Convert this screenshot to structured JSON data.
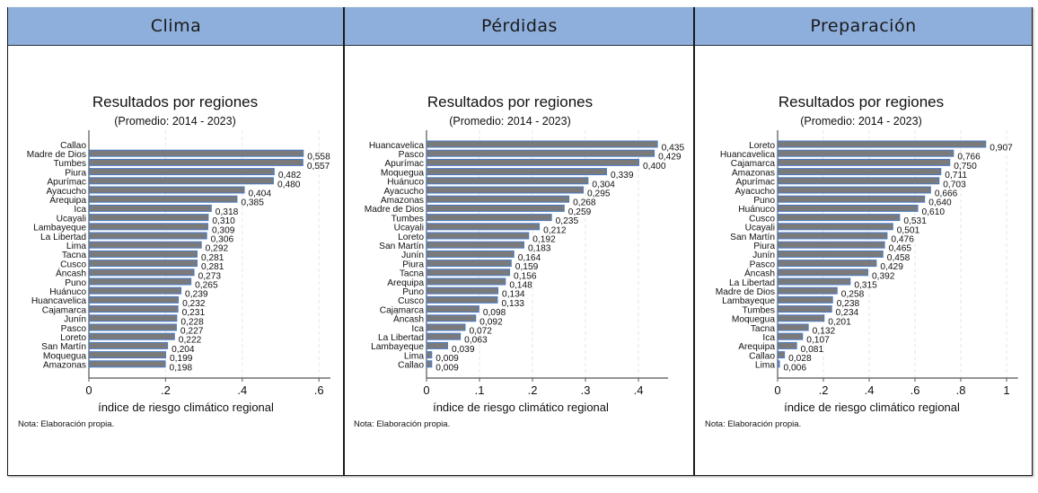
{
  "colors": {
    "header_bg": "#8eafdc",
    "bar_fill": "#7a7a7a",
    "bar_outline": "#4a7cc8",
    "grid": "#e6e6e6"
  },
  "chart_data": [
    {
      "type": "bar",
      "orientation": "horizontal",
      "panel_title": "Clima",
      "title": "Resultados por regiones",
      "subtitle": "(Promedio: 2014 - 2023)",
      "xlabel": "índice de riesgo climático regional",
      "note": "Nota: Elaboración propia.",
      "xlim": [
        0,
        0.63
      ],
      "ticks": [
        0,
        0.2,
        0.4,
        0.6
      ],
      "tick_labels": [
        "0",
        ".2",
        ".4",
        ".6"
      ],
      "grid": true,
      "categories": [
        "Callao",
        "Madre de Dios",
        "Tumbes",
        "Piura",
        "Apurímac",
        "Ayacucho",
        "Arequipa",
        "Ica",
        "Ucayali",
        "Lambayeque",
        "La Libertad",
        "Lima",
        "Tacna",
        "Cusco",
        "Áncash",
        "Puno",
        "Huánuco",
        "Huancavelica",
        "Cajamarca",
        "Junín",
        "Pasco",
        "Loreto",
        "San Martín",
        "Moquegua",
        "Amazonas"
      ],
      "values": [
        null,
        0.558,
        0.557,
        0.482,
        0.48,
        0.404,
        0.385,
        0.318,
        0.31,
        0.309,
        0.306,
        0.292,
        0.281,
        0.281,
        0.273,
        0.265,
        0.239,
        0.232,
        0.231,
        0.228,
        0.227,
        0.222,
        0.204,
        0.199,
        0.198
      ],
      "value_labels": [
        "",
        "0,558",
        "0,557",
        "0,482",
        "0,480",
        "0,404",
        "0,385",
        "0,318",
        "0,310",
        "0,309",
        "0,306",
        "0,292",
        "0,281",
        "0,281",
        "0,273",
        "0,265",
        "0,239",
        "0,232",
        "0,231",
        "0,228",
        "0,227",
        "0,222",
        "0,204",
        "0,199",
        "0,198"
      ]
    },
    {
      "type": "bar",
      "orientation": "horizontal",
      "panel_title": "Pérdidas",
      "title": "Resultados por regiones",
      "subtitle": "(Promedio: 2014 - 2023)",
      "xlabel": "índice de riesgo climático regional",
      "note": "Nota: Elaboración propia.",
      "xlim": [
        0,
        0.456
      ],
      "ticks": [
        0,
        0.1,
        0.2,
        0.3,
        0.4
      ],
      "tick_labels": [
        "0",
        ".1",
        ".2",
        ".3",
        ".4"
      ],
      "grid": true,
      "categories": [
        "Huancavelica",
        "Pasco",
        "Apurímac",
        "Moquegua",
        "Huánuco",
        "Ayacucho",
        "Amazonas",
        "Madre de Dios",
        "Tumbes",
        "Ucayali",
        "Loreto",
        "San Martín",
        "Junín",
        "Piura",
        "Tacna",
        "Arequipa",
        "Puno",
        "Cusco",
        "Cajamarca",
        "Áncash",
        "Ica",
        "La Libertad",
        "Lambayeque",
        "Lima",
        "Callao"
      ],
      "values": [
        0.435,
        0.429,
        0.4,
        0.339,
        0.304,
        0.295,
        0.268,
        0.259,
        0.235,
        0.212,
        0.192,
        0.183,
        0.164,
        0.159,
        0.156,
        0.148,
        0.134,
        0.133,
        0.098,
        0.092,
        0.072,
        0.063,
        0.039,
        0.009,
        0.009
      ],
      "value_labels": [
        "0,435",
        "0,429",
        "0,400",
        "0,339",
        "0,304",
        "0,295",
        "0,268",
        "0,259",
        "0,235",
        "0,212",
        "0,192",
        "0,183",
        "0,164",
        "0,159",
        "0,156",
        "0,148",
        "0,134",
        "0,133",
        "0,098",
        "0,092",
        "0,072",
        "0,063",
        "0,039",
        "0,009",
        "0,009"
      ]
    },
    {
      "type": "bar",
      "orientation": "horizontal",
      "panel_title": "Preparación",
      "title": "Resultados por regiones",
      "subtitle": "(Promedio: 2014 - 2023)",
      "xlabel": "índice de riesgo climático regional",
      "note": "Nota: Elaboración propia.",
      "xlim": [
        0,
        1.05
      ],
      "ticks": [
        0,
        0.2,
        0.4,
        0.6,
        0.8,
        1
      ],
      "tick_labels": [
        "0",
        ".2",
        ".4",
        ".6",
        ".8",
        "1"
      ],
      "grid": true,
      "categories": [
        "Loreto",
        "Huancavelica",
        "Cajamarca",
        "Amazonas",
        "Apurímac",
        "Ayacucho",
        "Puno",
        "Huánuco",
        "Cusco",
        "Ucayali",
        "San Martín",
        "Piura",
        "Junín",
        "Pasco",
        "Áncash",
        "La Libertad",
        "Madre de Dios",
        "Lambayeque",
        "Tumbes",
        "Moquegua",
        "Tacna",
        "Ica",
        "Arequipa",
        "Callao",
        "Lima"
      ],
      "values": [
        0.907,
        0.766,
        0.75,
        0.711,
        0.703,
        0.666,
        0.64,
        0.61,
        0.531,
        0.501,
        0.476,
        0.465,
        0.458,
        0.429,
        0.392,
        0.315,
        0.258,
        0.238,
        0.234,
        0.201,
        0.132,
        0.107,
        0.081,
        0.028,
        0.006
      ],
      "value_labels": [
        "0,907",
        "0,766",
        "0,750",
        "0,711",
        "0,703",
        "0,666",
        "0,640",
        "0,610",
        "0,531",
        "0,501",
        "0,476",
        "0,465",
        "0,458",
        "0,429",
        "0,392",
        "0,315",
        "0,258",
        "0,238",
        "0,234",
        "0,201",
        "0,132",
        "0,107",
        "0,081",
        "0,028",
        "0,006"
      ]
    }
  ]
}
